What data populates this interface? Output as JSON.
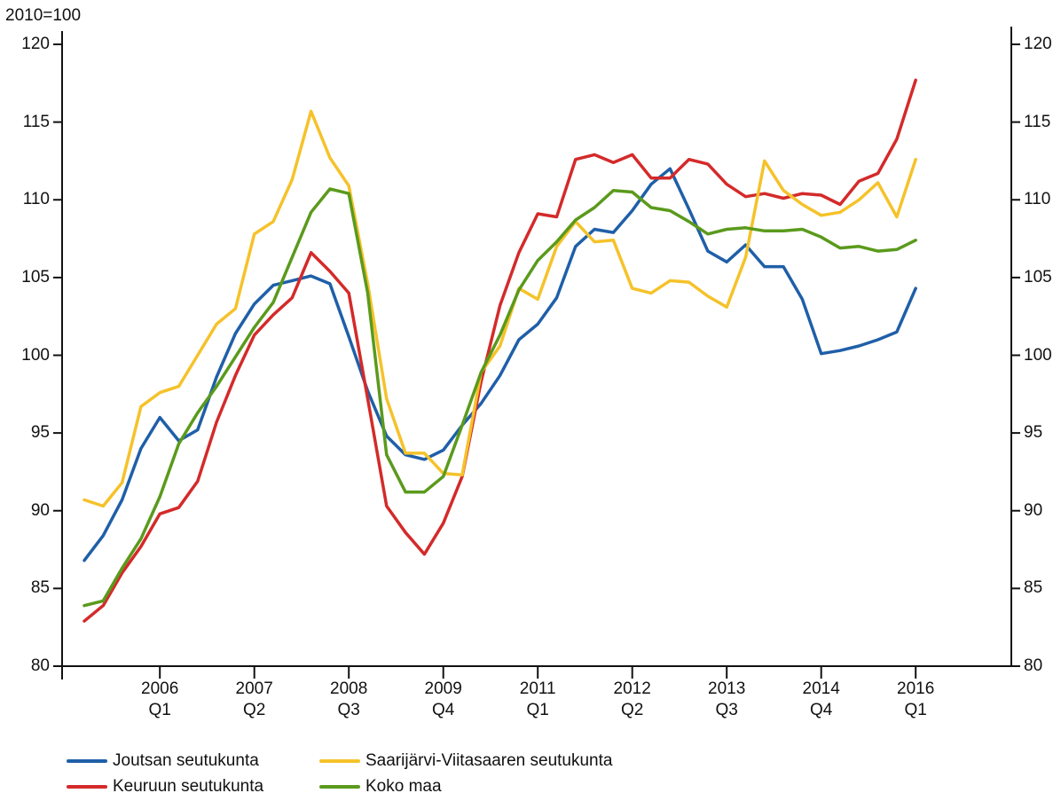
{
  "chart_data": {
    "type": "line",
    "y_label": "2010=100",
    "categories": [
      null,
      null,
      null,
      null,
      "2006\nQ1",
      null,
      null,
      null,
      null,
      "2007\nQ2",
      null,
      null,
      null,
      null,
      "2008\nQ3",
      null,
      null,
      null,
      null,
      "2009\nQ4",
      null,
      null,
      null,
      null,
      "2011\nQ1",
      null,
      null,
      null,
      null,
      "2012\nQ2",
      null,
      null,
      null,
      null,
      "2013\nQ3",
      null,
      null,
      null,
      null,
      "2014\nQ4",
      null,
      null,
      null,
      null,
      "2016\nQ1"
    ],
    "series": [
      {
        "name": "Joutsan seutukunta",
        "color": "#1f5fa8",
        "values": [
          86.8,
          88.4,
          90.7,
          94.0,
          96.0,
          94.5,
          95.2,
          98.6,
          101.4,
          103.3,
          104.5,
          104.8,
          105.1,
          104.6,
          101.2,
          97.7,
          94.8,
          93.6,
          93.3,
          93.9,
          95.5,
          96.9,
          98.7,
          101.0,
          102.0,
          103.7,
          107.0,
          108.1,
          107.9,
          109.3,
          111.0,
          112.0,
          109.4,
          106.7,
          106.0,
          107.1,
          105.7,
          105.7,
          103.6,
          100.1,
          100.3,
          100.6,
          101.0,
          101.5,
          104.3
        ]
      },
      {
        "name": "Keuruun seutukunta",
        "color": "#d42a2a",
        "values": [
          82.9,
          83.9,
          86.0,
          87.7,
          89.8,
          90.2,
          91.9,
          95.7,
          98.7,
          101.3,
          102.6,
          103.7,
          106.6,
          105.4,
          104.0,
          97.2,
          90.3,
          88.6,
          87.2,
          89.2,
          92.2,
          98.3,
          103.2,
          106.6,
          109.1,
          108.9,
          112.6,
          112.9,
          112.4,
          112.9,
          111.4,
          111.4,
          112.6,
          112.3,
          111.0,
          110.2,
          110.4,
          110.1,
          110.4,
          110.3,
          109.7,
          111.2,
          111.7,
          113.9,
          117.7
        ]
      },
      {
        "name": "Saarijärvi-Viitasaaren seutukunta",
        "color": "#f5c22a",
        "values": [
          90.7,
          90.3,
          91.8,
          96.7,
          97.6,
          98.0,
          100.0,
          102.0,
          103.0,
          107.8,
          108.6,
          111.3,
          115.7,
          112.7,
          110.9,
          104.6,
          97.2,
          93.7,
          93.7,
          92.4,
          92.3,
          98.9,
          100.6,
          104.3,
          103.6,
          107.0,
          108.6,
          107.3,
          107.4,
          104.3,
          104.0,
          104.8,
          104.7,
          103.8,
          103.1,
          106.3,
          112.5,
          110.6,
          109.7,
          109.0,
          109.2,
          110.0,
          111.1,
          108.9,
          112.6
        ]
      },
      {
        "name": "Koko maa",
        "color": "#5a9a1c",
        "values": [
          83.9,
          84.2,
          86.3,
          88.2,
          90.9,
          94.3,
          96.3,
          98.0,
          99.9,
          101.8,
          103.4,
          106.3,
          109.2,
          110.7,
          110.4,
          104.0,
          93.6,
          91.2,
          91.2,
          92.2,
          95.5,
          98.9,
          101.3,
          104.2,
          106.1,
          107.3,
          108.7,
          109.5,
          110.6,
          110.5,
          109.5,
          109.3,
          108.6,
          107.8,
          108.1,
          108.2,
          108.0,
          108.0,
          108.1,
          107.6,
          106.9,
          107.0,
          106.7,
          106.8,
          107.4
        ]
      }
    ],
    "ylim": [
      80,
      120
    ],
    "yticks": [
      80,
      85,
      90,
      95,
      100,
      105,
      110,
      115,
      120
    ],
    "y2lim": [
      80,
      120
    ],
    "y2ticks": [
      80,
      85,
      90,
      95,
      100,
      105,
      110,
      115,
      120
    ],
    "grid": false
  }
}
